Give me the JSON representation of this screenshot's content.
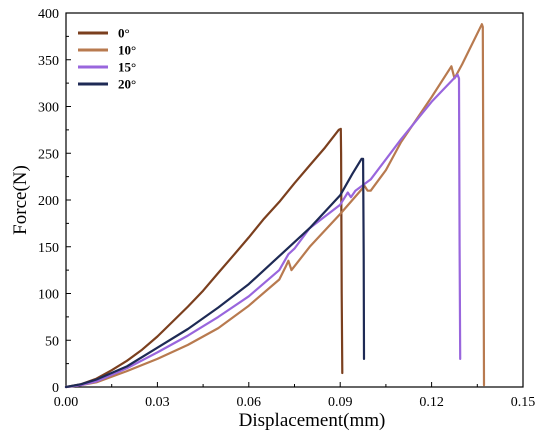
{
  "chart_data": {
    "type": "line",
    "title": "",
    "xlabel": "Displacement(mm)",
    "ylabel": "Force(N)",
    "xlim": [
      0,
      0.15
    ],
    "ylim": [
      0,
      400
    ],
    "xticks": [
      "0.00",
      "0.03",
      "0.06",
      "0.09",
      "0.12",
      "0.15"
    ],
    "yticks": [
      "0",
      "50",
      "100",
      "150",
      "200",
      "250",
      "300",
      "350",
      "400"
    ],
    "grid": false,
    "legend_position": "top-left",
    "series": [
      {
        "name": "0°",
        "color": "#7b3f1e",
        "x": [
          0,
          0.005,
          0.01,
          0.015,
          0.02,
          0.025,
          0.03,
          0.035,
          0.04,
          0.045,
          0.05,
          0.055,
          0.06,
          0.065,
          0.07,
          0.075,
          0.08,
          0.085,
          0.0895,
          0.0902,
          0.0903,
          0.0905,
          0.0907
        ],
        "y": [
          0,
          3,
          9,
          18,
          28,
          40,
          54,
          70,
          86,
          103,
          122,
          141,
          160,
          180,
          198,
          218,
          237,
          256,
          275,
          276,
          250,
          100,
          15
        ]
      },
      {
        "name": "10°",
        "color": "#b87a4f",
        "x": [
          0,
          0.005,
          0.01,
          0.02,
          0.03,
          0.04,
          0.05,
          0.06,
          0.07,
          0.072,
          0.073,
          0.074,
          0.08,
          0.09,
          0.098,
          0.099,
          0.1,
          0.105,
          0.11,
          0.12,
          0.1265,
          0.1275,
          0.13,
          0.1365,
          0.1368,
          0.137,
          0.1372
        ],
        "y": [
          0,
          2,
          5,
          17,
          30,
          45,
          63,
          87,
          115,
          128,
          135,
          125,
          150,
          185,
          215,
          210,
          210,
          232,
          262,
          310,
          343,
          330,
          345,
          388,
          385,
          200,
          2
        ]
      },
      {
        "name": "15°",
        "color": "#9966dd",
        "x": [
          0,
          0.005,
          0.01,
          0.02,
          0.03,
          0.04,
          0.05,
          0.06,
          0.07,
          0.073,
          0.075,
          0.08,
          0.09,
          0.0925,
          0.0935,
          0.095,
          0.1,
          0.11,
          0.12,
          0.125,
          0.1285,
          0.129,
          0.1292,
          0.1294
        ],
        "y": [
          0,
          2,
          6,
          20,
          37,
          55,
          75,
          97,
          125,
          142,
          148,
          170,
          195,
          208,
          203,
          210,
          222,
          265,
          305,
          322,
          334,
          330,
          150,
          30
        ]
      },
      {
        "name": "20°",
        "color": "#1e2a55",
        "x": [
          0,
          0.005,
          0.01,
          0.02,
          0.03,
          0.04,
          0.05,
          0.06,
          0.07,
          0.08,
          0.09,
          0.094,
          0.097,
          0.0975,
          0.0977,
          0.0978
        ],
        "y": [
          0,
          3,
          8,
          22,
          42,
          62,
          85,
          110,
          140,
          170,
          205,
          228,
          244,
          244,
          140,
          30
        ]
      }
    ]
  }
}
